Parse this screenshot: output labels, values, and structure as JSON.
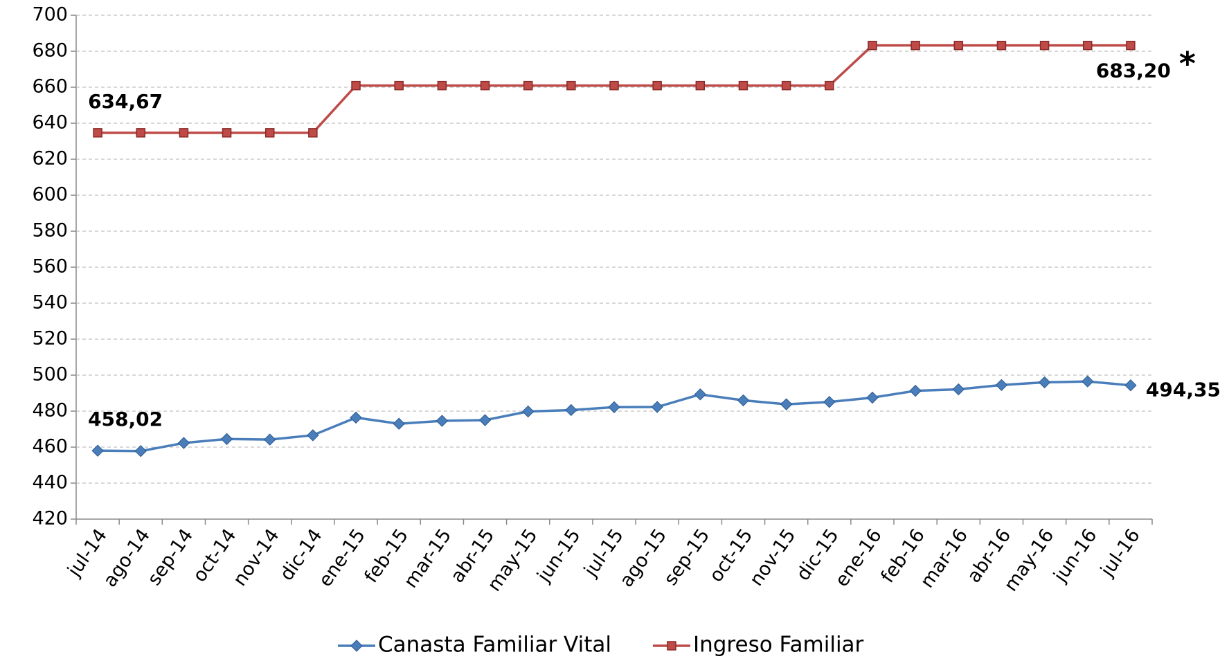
{
  "chart_data": {
    "type": "line",
    "categories": [
      "jul-14",
      "ago-14",
      "sep-14",
      "oct-14",
      "nov-14",
      "dic-14",
      "ene-15",
      "feb-15",
      "mar-15",
      "abr-15",
      "may-15",
      "jun-15",
      "jul-15",
      "ago-15",
      "sep-15",
      "oct-15",
      "nov-15",
      "dic-15",
      "ene-16",
      "feb-16",
      "mar-16",
      "abr-16",
      "may-16",
      "jun-16",
      "jul-16"
    ],
    "series": [
      {
        "name": "Canasta Familiar Vital",
        "color": "#4a7ebb",
        "marker": "diamond",
        "values": [
          458.02,
          457.8,
          462.3,
          464.5,
          464.2,
          466.6,
          476.4,
          473,
          474.6,
          475,
          479.8,
          480.6,
          482.2,
          482.3,
          489.3,
          486,
          483.8,
          485.1,
          487.5,
          491.3,
          492.1,
          494.5,
          496,
          496.5,
          494.35
        ],
        "value_labels": [
          "458,02",
          null,
          null,
          null,
          null,
          null,
          null,
          null,
          null,
          null,
          null,
          null,
          null,
          null,
          null,
          null,
          null,
          null,
          null,
          null,
          null,
          null,
          null,
          null,
          "494,35"
        ]
      },
      {
        "name": "Ingreso Familiar",
        "color": "#be4b48",
        "marker": "square",
        "values": [
          634.67,
          634.67,
          634.67,
          634.67,
          634.67,
          634.67,
          660.9,
          660.9,
          660.9,
          660.9,
          660.9,
          660.9,
          660.9,
          660.9,
          660.9,
          660.9,
          660.9,
          660.9,
          683.2,
          683.2,
          683.2,
          683.2,
          683.2,
          683.2,
          683.2
        ],
        "value_labels": [
          "634,67",
          null,
          null,
          null,
          null,
          null,
          null,
          null,
          null,
          null,
          null,
          null,
          null,
          null,
          null,
          null,
          null,
          null,
          null,
          null,
          null,
          null,
          null,
          null,
          "683,20"
        ]
      }
    ],
    "annotation": "*",
    "ylim": [
      420,
      700
    ],
    "yticks": [
      420,
      440,
      460,
      480,
      500,
      520,
      540,
      560,
      580,
      600,
      620,
      640,
      660,
      680,
      700
    ],
    "grid": true,
    "legend": "bottom"
  }
}
